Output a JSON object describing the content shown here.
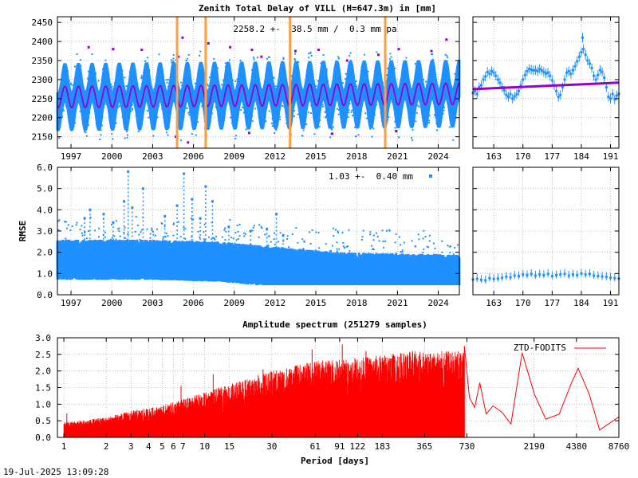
{
  "footer": {
    "timestamp": "19-Jul-2025 13:09:28"
  },
  "colors": {
    "data": "#1e90ff",
    "model": "#9400d3",
    "event": "#ff9e40",
    "spectrum": "#ff0000",
    "grid": "#9a9a9a"
  },
  "chart_data": [
    {
      "id": "ztd",
      "type": "scatter",
      "title": "Zenith Total Delay of VILL (H=647.3m) in [mm]",
      "annotation": "2258.2 +-  38.5 mm /  0.3 mm pa",
      "ylabel": "",
      "xlabel": "",
      "xlim": [
        1996.0,
        2025.55
      ],
      "ylim": [
        2120,
        2465
      ],
      "yticks": [
        2150,
        2200,
        2250,
        2300,
        2350,
        2400,
        2450
      ],
      "ytick_labels": [
        "2150",
        "2200",
        "2250",
        "2300",
        "2350",
        "2400",
        "2450"
      ],
      "xticks": [
        1997,
        2000,
        2003,
        2006,
        2009,
        2012,
        2015,
        2018,
        2021,
        2024
      ],
      "xtick_labels": [
        "1997",
        "2000",
        "2003",
        "2006",
        "2009",
        "2012",
        "2015",
        "2018",
        "2021",
        "2024"
      ],
      "grid": true,
      "mean": 2258.2,
      "trend_mm_per_year": 0.3,
      "seasonal_amplitude": 28,
      "scatter_band": [
        2195,
        2345
      ],
      "vertical_events": [
        2004.8,
        2006.9,
        2013.1,
        2020.1
      ],
      "outliers_high": [
        [
          1998.3,
          2385
        ],
        [
          2000.1,
          2380
        ],
        [
          2002.2,
          2378
        ],
        [
          2004.9,
          2360
        ],
        [
          2005.2,
          2410
        ],
        [
          2007.1,
          2395
        ],
        [
          2008.7,
          2385
        ],
        [
          2010.3,
          2378
        ],
        [
          2011.0,
          2360
        ],
        [
          2013.5,
          2375
        ],
        [
          2015.2,
          2378
        ],
        [
          2017.3,
          2350
        ],
        [
          2019.6,
          2365
        ],
        [
          2021.1,
          2380
        ],
        [
          2023.5,
          2375
        ],
        [
          2024.6,
          2405
        ]
      ],
      "outliers_low": [
        [
          2004.7,
          2150
        ],
        [
          2005.6,
          2135
        ],
        [
          2010.1,
          2160
        ],
        [
          2016.2,
          2158
        ],
        [
          2020.9,
          2165
        ]
      ]
    },
    {
      "id": "ztd-zoom",
      "type": "scatter",
      "xlim": [
        158,
        193
      ],
      "ylim": [
        2120,
        2465
      ],
      "xticks": [
        163,
        170,
        177,
        184,
        191
      ],
      "xtick_labels": [
        "163",
        "170",
        "177",
        "184",
        "191"
      ],
      "grid": true,
      "trend": [
        [
          158,
          2275
        ],
        [
          193,
          2292
        ]
      ],
      "points": [
        [
          158.0,
          2265
        ],
        [
          158.5,
          2270
        ],
        [
          159.0,
          2262
        ],
        [
          159.5,
          2280
        ],
        [
          160.0,
          2285
        ],
        [
          160.5,
          2300
        ],
        [
          161.0,
          2308
        ],
        [
          161.5,
          2320
        ],
        [
          162.0,
          2315
        ],
        [
          162.5,
          2322
        ],
        [
          163.0,
          2318
        ],
        [
          163.5,
          2310
        ],
        [
          164.0,
          2300
        ],
        [
          164.5,
          2292
        ],
        [
          165.0,
          2280
        ],
        [
          165.5,
          2272
        ],
        [
          166.0,
          2260
        ],
        [
          166.5,
          2255
        ],
        [
          167.0,
          2262
        ],
        [
          167.5,
          2250
        ],
        [
          168.0,
          2256
        ],
        [
          168.5,
          2262
        ],
        [
          169.0,
          2270
        ],
        [
          169.5,
          2285
        ],
        [
          170.0,
          2300
        ],
        [
          170.5,
          2312
        ],
        [
          171.0,
          2322
        ],
        [
          171.5,
          2328
        ],
        [
          172.0,
          2326
        ],
        [
          172.5,
          2324
        ],
        [
          173.0,
          2325
        ],
        [
          173.5,
          2322
        ],
        [
          174.0,
          2328
        ],
        [
          174.5,
          2324
        ],
        [
          175.0,
          2320
        ],
        [
          175.5,
          2316
        ],
        [
          176.0,
          2318
        ],
        [
          176.5,
          2310
        ],
        [
          177.0,
          2298
        ],
        [
          177.5,
          2285
        ],
        [
          178.0,
          2270
        ],
        [
          178.5,
          2255
        ],
        [
          179.0,
          2260
        ],
        [
          179.5,
          2280
        ],
        [
          180.0,
          2300
        ],
        [
          180.5,
          2318
        ],
        [
          181.0,
          2322
        ],
        [
          181.5,
          2315
        ],
        [
          182.0,
          2325
        ],
        [
          182.5,
          2335
        ],
        [
          183.0,
          2348
        ],
        [
          183.5,
          2360
        ],
        [
          184.0,
          2372
        ],
        [
          184.3,
          2410
        ],
        [
          184.5,
          2380
        ],
        [
          185.0,
          2365
        ],
        [
          185.5,
          2350
        ],
        [
          186.0,
          2342
        ],
        [
          186.5,
          2330
        ],
        [
          187.0,
          2310
        ],
        [
          187.5,
          2300
        ],
        [
          188.0,
          2312
        ],
        [
          188.5,
          2325
        ],
        [
          189.0,
          2320
        ],
        [
          189.5,
          2305
        ],
        [
          190.0,
          2280
        ],
        [
          190.5,
          2255
        ],
        [
          191.0,
          2250
        ],
        [
          191.5,
          2262
        ],
        [
          192.0,
          2248
        ],
        [
          192.5,
          2258
        ],
        [
          193.0,
          2262
        ]
      ]
    },
    {
      "id": "rmse",
      "type": "scatter",
      "annotation": "1.03 +-  0.40 mm",
      "ylabel": "RMSE",
      "xlim": [
        1996.0,
        2025.55
      ],
      "ylim": [
        0,
        6
      ],
      "yticks": [
        0,
        1,
        2,
        3,
        4,
        5,
        6
      ],
      "ytick_labels": [
        "0.0",
        "1.0",
        "2.0",
        "3.0",
        "4.0",
        "5.0",
        "6.0"
      ],
      "xticks": [
        1997,
        2000,
        2003,
        2006,
        2009,
        2012,
        2015,
        2018,
        2021,
        2024
      ],
      "xtick_labels": [
        "1997",
        "2000",
        "2003",
        "2006",
        "2009",
        "2012",
        "2015",
        "2018",
        "2021",
        "2024"
      ],
      "grid": true,
      "mean": 1.03,
      "std": 0.4,
      "band_levels": [
        [
          1996.0,
          1.6
        ],
        [
          2003.0,
          1.6
        ],
        [
          2008.0,
          1.5
        ],
        [
          2013.2,
          1.2
        ],
        [
          2017.0,
          1.0
        ],
        [
          2025.5,
          0.9
        ]
      ],
      "spikes": [
        [
          1998.0,
          3.6
        ],
        [
          1998.4,
          4.0
        ],
        [
          1999.4,
          3.8
        ],
        [
          2000.1,
          3.4
        ],
        [
          2000.9,
          4.4
        ],
        [
          2001.2,
          5.8
        ],
        [
          2001.5,
          4.1
        ],
        [
          2002.3,
          5.0
        ],
        [
          2003.9,
          3.7
        ],
        [
          2004.8,
          4.2
        ],
        [
          2005.3,
          5.7
        ],
        [
          2005.9,
          4.5
        ],
        [
          2006.5,
          3.6
        ],
        [
          2006.9,
          5.1
        ],
        [
          2007.4,
          4.4
        ],
        [
          2008.6,
          3.2
        ],
        [
          2010.2,
          3.0
        ],
        [
          2011.4,
          3.1
        ],
        [
          2012.1,
          3.8
        ],
        [
          2012.6,
          2.8
        ]
      ]
    },
    {
      "id": "rmse-zoom",
      "type": "scatter",
      "xlim": [
        158,
        193
      ],
      "ylim": [
        0,
        6
      ],
      "xticks": [
        163,
        170,
        177,
        184,
        191
      ],
      "xtick_labels": [
        "163",
        "170",
        "177",
        "184",
        "191"
      ],
      "grid": true,
      "points": [
        [
          158,
          0.72
        ],
        [
          159,
          0.75
        ],
        [
          160,
          0.7
        ],
        [
          161,
          0.68
        ],
        [
          162,
          0.78
        ],
        [
          163,
          0.74
        ],
        [
          164,
          0.76
        ],
        [
          165,
          0.8
        ],
        [
          166,
          0.85
        ],
        [
          167,
          0.82
        ],
        [
          168,
          0.9
        ],
        [
          169,
          0.88
        ],
        [
          170,
          0.95
        ],
        [
          171,
          0.92
        ],
        [
          172,
          0.98
        ],
        [
          173,
          0.9
        ],
        [
          174,
          0.95
        ],
        [
          175,
          0.92
        ],
        [
          176,
          0.98
        ],
        [
          177,
          0.88
        ],
        [
          178,
          0.92
        ],
        [
          179,
          0.95
        ],
        [
          180,
          0.98
        ],
        [
          181,
          0.9
        ],
        [
          182,
          0.95
        ],
        [
          183,
          0.92
        ],
        [
          184,
          1.0
        ],
        [
          185,
          0.95
        ],
        [
          186,
          0.98
        ],
        [
          187,
          0.9
        ],
        [
          188,
          0.88
        ],
        [
          189,
          0.86
        ],
        [
          190,
          0.84
        ],
        [
          191,
          0.8
        ],
        [
          192,
          0.78
        ],
        [
          193,
          0.76
        ]
      ]
    },
    {
      "id": "spectrum",
      "type": "line",
      "title": "Amplitude spectrum (251279 samples)",
      "xlabel": "Period [days]",
      "xscale": "log",
      "xlim": [
        0.9,
        8760
      ],
      "ylim": [
        0,
        3.0
      ],
      "yticks": [
        0,
        0.5,
        1.0,
        1.5,
        2.0,
        2.5,
        3.0
      ],
      "ytick_labels": [
        "0.0",
        "0.5",
        "1.0",
        "1.5",
        "2.0",
        "2.5",
        "3.0"
      ],
      "xticks": [
        1,
        2,
        3,
        4,
        5,
        6,
        7,
        10,
        15,
        30,
        61,
        91,
        122,
        183,
        365,
        730,
        2190,
        4380,
        8760
      ],
      "xtick_labels": [
        "1",
        "2",
        "3",
        "4",
        "5",
        "6",
        "7",
        "10",
        "15",
        "30",
        "61",
        "91",
        "122",
        "183",
        "365",
        "730",
        "2190",
        "4380",
        "8760"
      ],
      "grid": true,
      "legend_position": "top-right",
      "series": [
        {
          "name": "ZTD-FODITS",
          "envelope": [
            [
              1,
              0.45
            ],
            [
              2,
              0.6
            ],
            [
              3,
              0.8
            ],
            [
              5,
              0.95
            ],
            [
              7,
              1.15
            ],
            [
              10,
              1.35
            ],
            [
              15,
              1.6
            ],
            [
              30,
              2.0
            ],
            [
              60,
              2.3
            ],
            [
              120,
              2.4
            ],
            [
              300,
              2.6
            ]
          ],
          "peaks": [
            [
              1.05,
              0.72
            ],
            [
              6.8,
              1.55
            ],
            [
              11.5,
              1.9
            ],
            [
              26,
              2.05
            ],
            [
              58,
              2.65
            ],
            [
              95,
              2.8
            ],
            [
              140,
              2.6
            ],
            [
              200,
              2.4
            ],
            [
              300,
              2.6
            ],
            [
              400,
              1.9
            ],
            [
              600,
              2.35
            ],
            [
              700,
              2.75
            ]
          ],
          "tail": [
            [
              700,
              2.75
            ],
            [
              760,
              1.2
            ],
            [
              830,
              0.9
            ],
            [
              900,
              1.65
            ],
            [
              1000,
              0.7
            ],
            [
              1120,
              0.95
            ],
            [
              1300,
              0.75
            ],
            [
              1500,
              0.4
            ],
            [
              1800,
              2.55
            ],
            [
              2200,
              1.3
            ],
            [
              2650,
              0.55
            ],
            [
              3300,
              0.7
            ],
            [
              4000,
              1.6
            ],
            [
              4500,
              2.08
            ],
            [
              5400,
              1.3
            ],
            [
              6400,
              0.22
            ],
            [
              8760,
              0.62
            ]
          ]
        }
      ]
    }
  ]
}
